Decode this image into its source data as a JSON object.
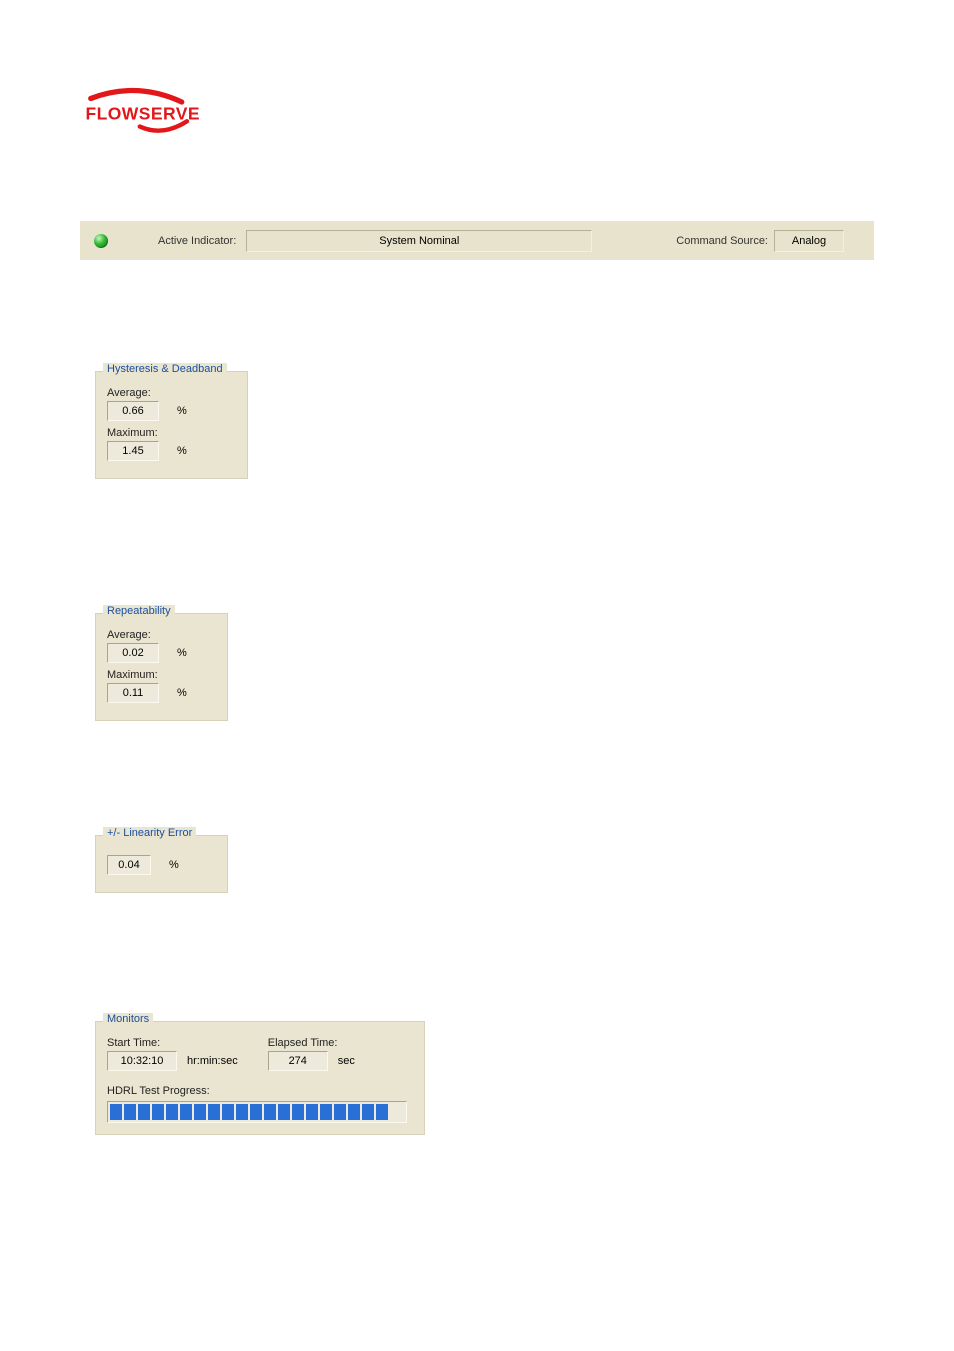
{
  "logo": {
    "text": "FLOWSERVE",
    "color": "#e3171a"
  },
  "header": {
    "active_indicator_label": "Active Indicator:",
    "system_status": "System Nominal",
    "command_source_label": "Command Source:",
    "command_source_value": "Analog",
    "led_color": "#2fb82f"
  },
  "hysteresis_deadband": {
    "title": "Hysteresis & Deadband",
    "average_label": "Average:",
    "average_value": "0.66",
    "average_unit": "%",
    "maximum_label": "Maximum:",
    "maximum_value": "1.45",
    "maximum_unit": "%"
  },
  "repeatability": {
    "title": "Repeatability",
    "average_label": "Average:",
    "average_value": "0.02",
    "average_unit": "%",
    "maximum_label": "Maximum:",
    "maximum_value": "0.11",
    "maximum_unit": "%"
  },
  "linearity_error": {
    "title": "+/- Linearity Error",
    "value": "0.04",
    "unit": "%"
  },
  "monitors": {
    "title": "Monitors",
    "start_time_label": "Start Time:",
    "start_time_value": "10:32:10",
    "start_time_unit": "hr:min:sec",
    "elapsed_time_label": "Elapsed Time:",
    "elapsed_time_value": "274",
    "elapsed_time_unit": "sec",
    "progress_label": "HDRL Test Progress:",
    "progress_total_segments": 20,
    "progress_filled_segments": 20,
    "progress_color": "#2a6fd6"
  },
  "colors": {
    "panel_bg": "#e9e5d0",
    "header_bg": "#e7e3cc",
    "group_title": "#1a4f9e"
  }
}
